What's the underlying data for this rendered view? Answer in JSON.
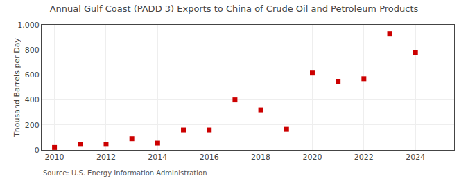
{
  "chart_data": {
    "type": "scatter",
    "title": "Annual Gulf Coast (PADD 3) Exports to China of Crude Oil and Petroleum Products",
    "ylabel": "Thousand Barrels per Day",
    "annotations": [
      "Source: U.S. Energy Information Administration"
    ],
    "x": [
      2010,
      2011,
      2012,
      2013,
      2014,
      2015,
      2016,
      2017,
      2018,
      2019,
      2020,
      2021,
      2022,
      2023,
      2024
    ],
    "values": [
      20,
      45,
      45,
      90,
      55,
      160,
      160,
      400,
      320,
      165,
      615,
      545,
      570,
      930,
      780
    ],
    "color": "#cc0000",
    "marker": "square",
    "xlim": [
      2009.5,
      2025.5
    ],
    "xticks": [
      2010,
      2012,
      2014,
      2016,
      2018,
      2020,
      2022,
      2024
    ],
    "ylim": [
      0,
      1000
    ],
    "yticks": [
      0,
      200,
      400,
      600,
      800,
      {
        "value": 1000,
        "label": "1,000"
      }
    ],
    "grid": true
  }
}
